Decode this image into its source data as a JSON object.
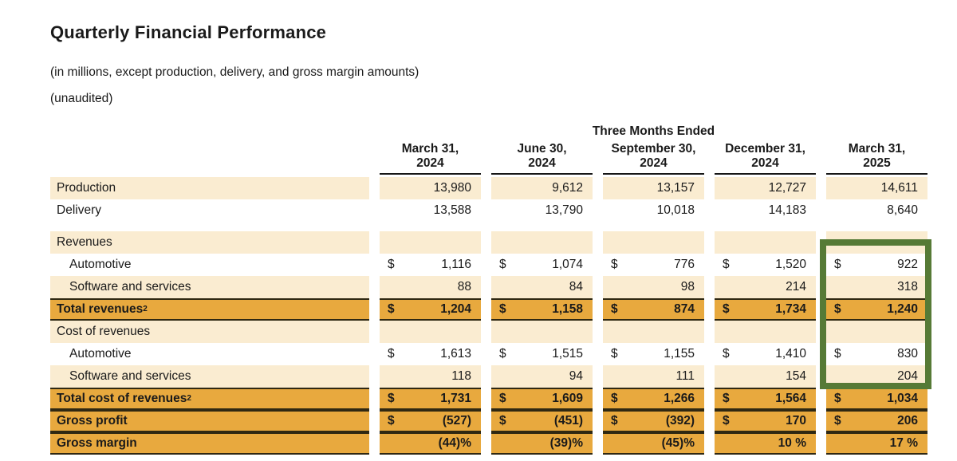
{
  "page": {
    "title": "Quarterly Financial Performance",
    "subtitle1": "(in millions, except production, delivery, and gross margin amounts)",
    "subtitle2": "(unaudited)"
  },
  "table": {
    "group_header": "Three Months Ended",
    "columns": [
      "March 31,\n2024",
      "June 30,\n2024",
      "September 30,\n2024",
      "December 31,\n2024",
      "March 31,\n2025"
    ],
    "rows": [
      {
        "label": "Production",
        "style": "shaded",
        "indent": false,
        "cells": [
          {
            "v": "13,980"
          },
          {
            "v": "9,612"
          },
          {
            "v": "13,157"
          },
          {
            "v": "12,727"
          },
          {
            "v": "14,611"
          }
        ]
      },
      {
        "label": "Delivery",
        "style": "plain",
        "indent": false,
        "cells": [
          {
            "v": "13,588"
          },
          {
            "v": "13,790"
          },
          {
            "v": "10,018"
          },
          {
            "v": "14,183"
          },
          {
            "v": "8,640"
          }
        ]
      },
      {
        "spacer": true
      },
      {
        "label": "Revenues",
        "style": "shaded",
        "indent": false,
        "cells": [
          {},
          {},
          {},
          {},
          {}
        ]
      },
      {
        "label": "Automotive",
        "style": "plain",
        "indent": true,
        "cells": [
          {
            "d": "$",
            "v": "1,116"
          },
          {
            "d": "$",
            "v": "1,074"
          },
          {
            "d": "$",
            "v": "776"
          },
          {
            "d": "$",
            "v": "1,520"
          },
          {
            "d": "$",
            "v": "922"
          }
        ]
      },
      {
        "label": "Software and services",
        "style": "shaded",
        "indent": true,
        "cells": [
          {
            "v": "88"
          },
          {
            "v": "84"
          },
          {
            "v": "98"
          },
          {
            "v": "214"
          },
          {
            "v": "318"
          }
        ]
      },
      {
        "label": "Total revenues",
        "sup": "2",
        "style": "total",
        "indent": false,
        "cells": [
          {
            "d": "$",
            "v": "1,204"
          },
          {
            "d": "$",
            "v": "1,158"
          },
          {
            "d": "$",
            "v": "874"
          },
          {
            "d": "$",
            "v": "1,734"
          },
          {
            "d": "$",
            "v": "1,240"
          }
        ]
      },
      {
        "label": "Cost of revenues",
        "style": "shaded",
        "indent": false,
        "cells": [
          {},
          {},
          {},
          {},
          {}
        ]
      },
      {
        "label": "Automotive",
        "style": "plain",
        "indent": true,
        "cells": [
          {
            "d": "$",
            "v": "1,613"
          },
          {
            "d": "$",
            "v": "1,515"
          },
          {
            "d": "$",
            "v": "1,155"
          },
          {
            "d": "$",
            "v": "1,410"
          },
          {
            "d": "$",
            "v": "830"
          }
        ]
      },
      {
        "label": "Software and services",
        "style": "shaded",
        "indent": true,
        "cells": [
          {
            "v": "118"
          },
          {
            "v": "94"
          },
          {
            "v": "111"
          },
          {
            "v": "154"
          },
          {
            "v": "204"
          }
        ]
      },
      {
        "label": "Total cost of revenues",
        "sup": "2",
        "style": "total",
        "indent": false,
        "cells": [
          {
            "d": "$",
            "v": "1,731"
          },
          {
            "d": "$",
            "v": "1,609"
          },
          {
            "d": "$",
            "v": "1,266"
          },
          {
            "d": "$",
            "v": "1,564"
          },
          {
            "d": "$",
            "v": "1,034"
          }
        ]
      },
      {
        "label": "Gross profit",
        "style": "total",
        "indent": false,
        "cells": [
          {
            "d": "$",
            "v": "(527)"
          },
          {
            "d": "$",
            "v": "(451)"
          },
          {
            "d": "$",
            "v": "(392)"
          },
          {
            "d": "$",
            "v": "170"
          },
          {
            "d": "$",
            "v": "206"
          }
        ]
      },
      {
        "label": "Gross margin",
        "style": "total",
        "indent": false,
        "cells": [
          {
            "v": "(44)%"
          },
          {
            "v": "(39)%"
          },
          {
            "v": "(45)%"
          },
          {
            "v": "10 %"
          },
          {
            "v": "17 %"
          }
        ]
      }
    ]
  },
  "highlight": {
    "name": "march-2025-revenue-cost-highlight",
    "color": "#567a36"
  },
  "colors": {
    "row_shaded": "#faecd1",
    "row_total": "#e8a93e",
    "total_border": "#2f2812",
    "header_underline": "#161616",
    "text": "#1a1a1a",
    "highlight_green": "#567a36"
  }
}
